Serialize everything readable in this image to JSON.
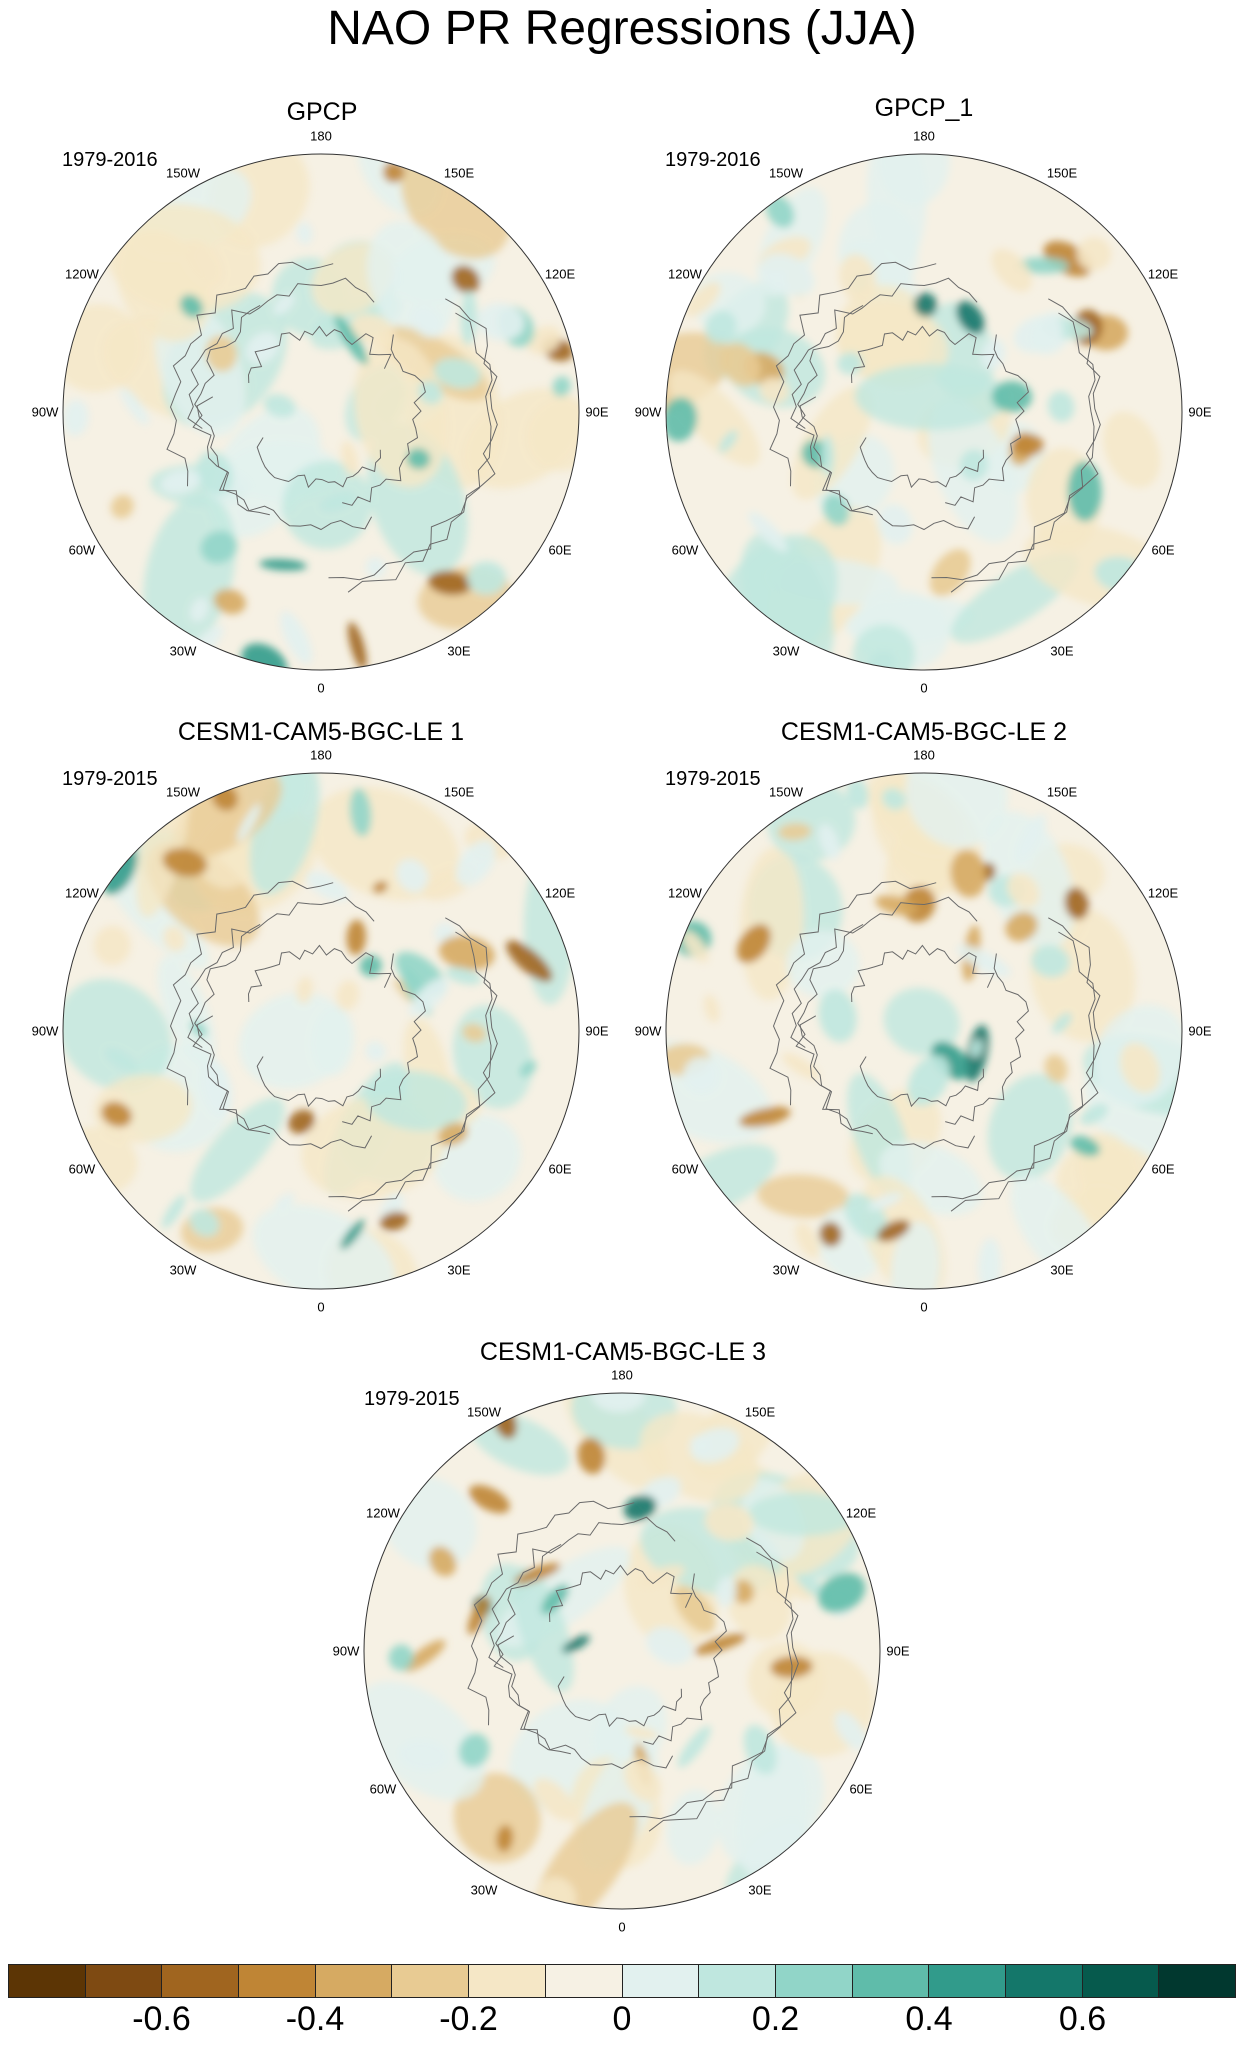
{
  "title": "NAO PR Regressions (JJA)",
  "longitude_labels": [
    "180",
    "150E",
    "120E",
    "90E",
    "60E",
    "30E",
    "0",
    "30W",
    "60W",
    "90W",
    "120W",
    "150W"
  ],
  "panels": [
    {
      "name": "GPCP",
      "period": "1979-2016"
    },
    {
      "name": "GPCP_1",
      "period": "1979-2016"
    },
    {
      "name": "CESM1-CAM5-BGC-LE 1",
      "period": "1979-2015"
    },
    {
      "name": "CESM1-CAM5-BGC-LE 2",
      "period": "1979-2015"
    },
    {
      "name": "CESM1-CAM5-BGC-LE 3",
      "period": "1979-2015"
    }
  ],
  "colorbar": {
    "colors": [
      "#5c3505",
      "#7e4a12",
      "#a0651f",
      "#bf8535",
      "#d6aa62",
      "#e8cb93",
      "#f5e7c6",
      "#f6f1e4",
      "#e2f1ef",
      "#bfe7df",
      "#91d5c8",
      "#5fbcaa",
      "#319b8b",
      "#14776a",
      "#065a4d",
      "#01382f"
    ],
    "labels": [
      "-0.6",
      "-0.4",
      "-0.2",
      "0",
      "0.2",
      "0.4",
      "0.6"
    ]
  }
}
